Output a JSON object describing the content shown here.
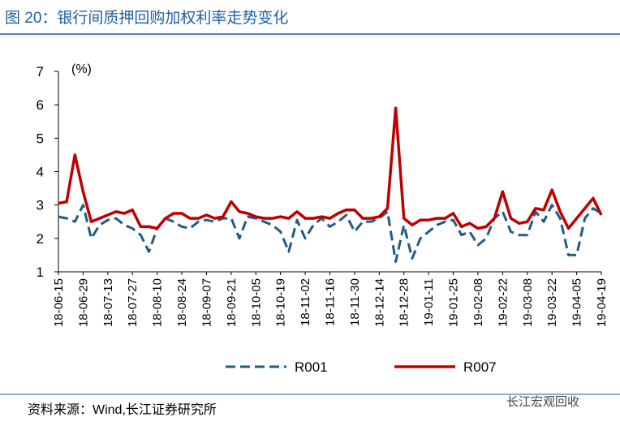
{
  "chart_data": {
    "type": "line",
    "title": "图 20：银行间质押回购加权利率走势变化",
    "y_label": "(%)",
    "source": "资料来源：Wind,长江证券研究所",
    "watermark": "长江宏观回收",
    "categories": [
      "18-06-15",
      null,
      null,
      "18-06-29",
      null,
      null,
      "18-07-13",
      null,
      null,
      "18-07-27",
      null,
      null,
      "18-08-10",
      null,
      null,
      "18-08-24",
      null,
      null,
      "18-09-07",
      null,
      null,
      "18-09-21",
      null,
      null,
      "18-10-05",
      null,
      null,
      "18-10-19",
      null,
      null,
      "18-11-02",
      null,
      null,
      "18-11-16",
      null,
      null,
      "18-11-30",
      null,
      null,
      "18-12-14",
      null,
      null,
      "18-12-28",
      null,
      null,
      "19-01-11",
      null,
      null,
      "19-01-25",
      null,
      null,
      "19-02-08",
      null,
      null,
      "19-02-22",
      null,
      null,
      "19-03-08",
      null,
      null,
      "19-03-22",
      null,
      null,
      "19-04-05",
      null,
      null,
      "19-04-19"
    ],
    "series": [
      {
        "name": "R001",
        "color": "#1f5c8a",
        "dash": true,
        "values": [
          2.65,
          2.6,
          2.5,
          3.0,
          2.0,
          2.4,
          2.55,
          2.6,
          2.4,
          2.3,
          2.1,
          1.6,
          2.3,
          2.6,
          2.5,
          2.35,
          2.3,
          2.5,
          2.55,
          2.5,
          2.6,
          2.6,
          2.0,
          2.65,
          2.6,
          2.5,
          2.4,
          2.2,
          1.6,
          2.55,
          2.0,
          2.4,
          2.6,
          2.35,
          2.5,
          2.7,
          2.2,
          2.5,
          2.5,
          2.6,
          2.8,
          1.3,
          2.4,
          1.4,
          2.0,
          2.2,
          2.4,
          2.5,
          2.55,
          2.1,
          2.2,
          1.8,
          2.0,
          2.6,
          2.8,
          2.2,
          2.1,
          2.1,
          2.8,
          2.5,
          3.0,
          2.6,
          1.5,
          1.5,
          2.6,
          2.9,
          2.75
        ]
      },
      {
        "name": "R007",
        "color": "#c00000",
        "dash": false,
        "values": [
          3.05,
          3.1,
          4.5,
          3.4,
          2.5,
          2.6,
          2.7,
          2.8,
          2.75,
          2.85,
          2.35,
          2.35,
          2.3,
          2.6,
          2.75,
          2.75,
          2.6,
          2.6,
          2.7,
          2.6,
          2.65,
          3.1,
          2.8,
          2.75,
          2.65,
          2.6,
          2.6,
          2.65,
          2.6,
          2.8,
          2.6,
          2.6,
          2.65,
          2.6,
          2.75,
          2.85,
          2.85,
          2.6,
          2.6,
          2.65,
          2.9,
          5.9,
          2.6,
          2.4,
          2.55,
          2.55,
          2.6,
          2.6,
          2.75,
          2.35,
          2.45,
          2.3,
          2.35,
          2.6,
          3.4,
          2.6,
          2.45,
          2.5,
          2.9,
          2.85,
          3.45,
          2.8,
          2.3,
          2.6,
          2.9,
          3.2,
          2.7
        ]
      }
    ],
    "ylim": [
      1,
      7
    ],
    "yticks": [
      1,
      2,
      3,
      4,
      5,
      6,
      7
    ],
    "grid": false
  }
}
